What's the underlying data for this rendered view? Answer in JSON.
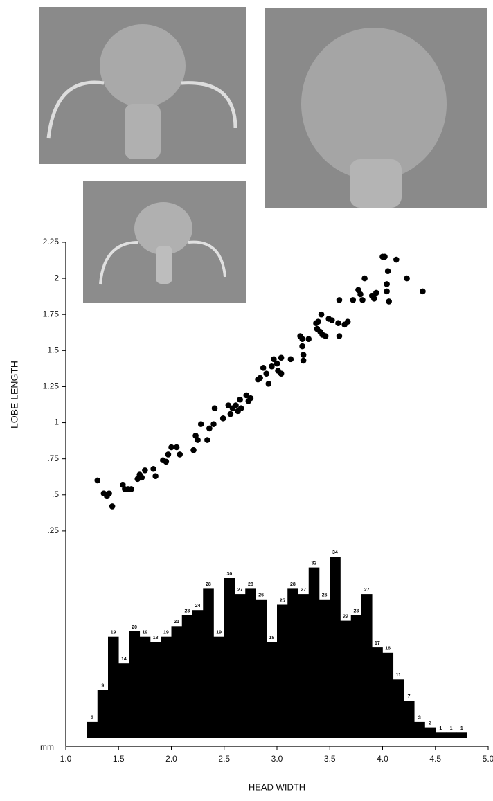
{
  "chart_data": [
    {
      "type": "scatter",
      "ylabel": "LOBE LENGTH",
      "xlabel": "HEAD WIDTH",
      "y_unit_label": "mm",
      "x": [
        1.3,
        1.36,
        1.39,
        1.41,
        1.44,
        1.54,
        1.56,
        1.59,
        1.62,
        1.68,
        1.7,
        1.72,
        1.75,
        1.83,
        1.85,
        1.92,
        1.95,
        1.97,
        2.0,
        2.05,
        2.08,
        2.21,
        2.23,
        2.25,
        2.28,
        2.34,
        2.36,
        2.4,
        2.41,
        2.49,
        2.54,
        2.56,
        2.58,
        2.61,
        2.63,
        2.65,
        2.66,
        2.71,
        2.73,
        2.75,
        2.82,
        2.84,
        2.87,
        2.9,
        2.92,
        2.95,
        2.97,
        3.0,
        3.01,
        3.04,
        3.04,
        3.13,
        3.22,
        3.24,
        3.24,
        3.25,
        3.25,
        3.3,
        3.37,
        3.38,
        3.39,
        3.41,
        3.42,
        3.43,
        3.46,
        3.49,
        3.52,
        3.58,
        3.59,
        3.59,
        3.64,
        3.67,
        3.72,
        3.77,
        3.79,
        3.81,
        3.83,
        3.9,
        3.92,
        3.94,
        4.0,
        4.02,
        4.04,
        4.04,
        4.05,
        4.06,
        4.13,
        4.23,
        4.38
      ],
      "values": [
        0.6,
        0.51,
        0.49,
        0.51,
        0.42,
        0.57,
        0.54,
        0.54,
        0.54,
        0.61,
        0.64,
        0.62,
        0.67,
        0.68,
        0.63,
        0.74,
        0.73,
        0.78,
        0.83,
        0.83,
        0.78,
        0.81,
        0.91,
        0.88,
        0.99,
        0.88,
        0.96,
        0.99,
        1.1,
        1.03,
        1.12,
        1.06,
        1.1,
        1.12,
        1.08,
        1.16,
        1.1,
        1.19,
        1.15,
        1.17,
        1.3,
        1.31,
        1.38,
        1.34,
        1.27,
        1.39,
        1.44,
        1.41,
        1.36,
        1.45,
        1.34,
        1.44,
        1.6,
        1.58,
        1.53,
        1.43,
        1.47,
        1.58,
        1.69,
        1.65,
        1.7,
        1.63,
        1.75,
        1.61,
        1.6,
        1.72,
        1.71,
        1.69,
        1.6,
        1.85,
        1.68,
        1.7,
        1.85,
        1.92,
        1.89,
        1.85,
        2.0,
        1.88,
        1.86,
        1.9,
        2.15,
        2.15,
        1.91,
        1.96,
        2.05,
        1.84,
        2.13,
        2.0,
        1.91
      ],
      "color": "#000000",
      "xlim": [
        1,
        5
      ],
      "xticks": [
        {
          "value": 1,
          "label": "1.0"
        },
        1.5,
        {
          "value": 2,
          "label": "2.0"
        },
        2.5,
        {
          "value": 3,
          "label": "3.0"
        },
        3.5,
        {
          "value": 4,
          "label": "4.0"
        },
        4.5,
        {
          "value": 5,
          "label": "5.0"
        }
      ],
      "ylim": [
        0,
        2.25
      ],
      "yticks": [
        {
          "value": 0.25,
          "label": ".25"
        },
        {
          "value": 0.5,
          "label": ".5"
        },
        {
          "value": 0.75,
          "label": ".75"
        },
        1,
        1.25,
        1.5,
        1.75,
        2,
        2.25
      ]
    },
    {
      "type": "histogram",
      "bins": [
        1.2,
        1.3,
        1.4,
        1.5,
        1.6,
        1.7,
        1.8,
        1.9,
        2.0,
        2.1,
        2.2,
        2.3,
        2.4,
        2.5,
        2.6,
        2.7,
        2.8,
        2.9,
        3.0,
        3.1,
        3.2,
        3.3,
        3.4,
        3.5,
        3.6,
        3.7,
        3.8,
        3.9,
        4.0,
        4.1,
        4.2,
        4.3,
        4.4,
        4.5,
        4.6,
        4.7,
        4.8
      ],
      "values": [
        3,
        9,
        19,
        14,
        20,
        19,
        18,
        19,
        21,
        23,
        24,
        28,
        19,
        30,
        27,
        28,
        26,
        18,
        25,
        28,
        27,
        32,
        26,
        34,
        22,
        23,
        27,
        17,
        16,
        11,
        7,
        3,
        2,
        1,
        1,
        1
      ],
      "color": "#000000"
    }
  ]
}
